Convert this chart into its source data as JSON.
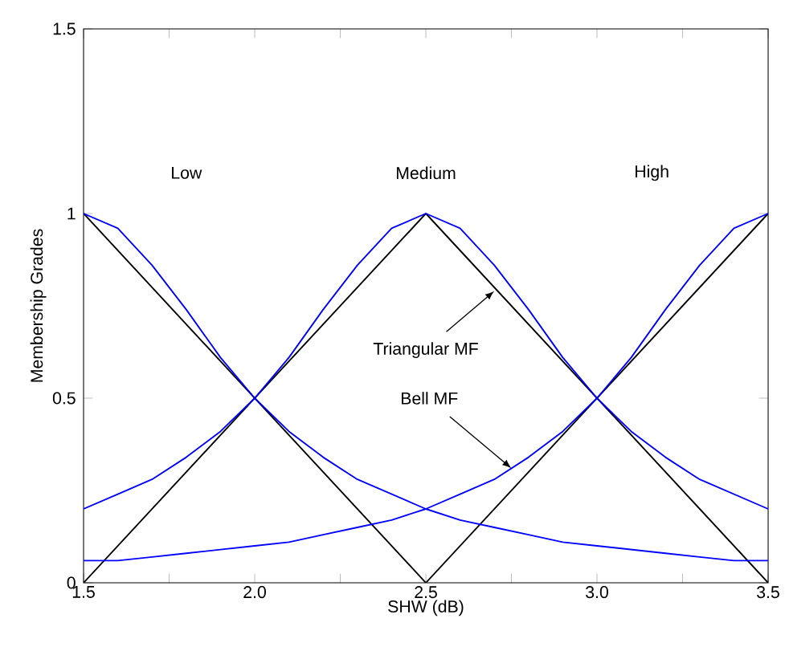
{
  "chart_data": {
    "type": "line",
    "xlabel": "SHW (dB)",
    "ylabel": "Membership Grades",
    "xlim": [
      1.5,
      3.5
    ],
    "ylim": [
      0,
      1.5
    ],
    "xticks": [
      {
        "value": 1.5,
        "label": "1.5"
      },
      {
        "value": 1.75,
        "label": null
      },
      {
        "value": 2.0,
        "label": "2.0"
      },
      {
        "value": 2.25,
        "label": null
      },
      {
        "value": 2.5,
        "label": "2.5"
      },
      {
        "value": 2.75,
        "label": null
      },
      {
        "value": 3.0,
        "label": "3.0"
      },
      {
        "value": 3.25,
        "label": null
      },
      {
        "value": 3.5,
        "label": "3.5"
      }
    ],
    "yticks": [
      0,
      0.5,
      1,
      1.5
    ],
    "grid": false,
    "marker": "none",
    "line_style": "solid",
    "series": [
      {
        "color": "#000000",
        "x": [
          1.5,
          2.5
        ],
        "values": [
          1,
          0
        ]
      },
      {
        "color": "#000000",
        "x": [
          1.5,
          2.5,
          3.5
        ],
        "values": [
          0,
          1,
          0
        ]
      },
      {
        "color": "#000000",
        "x": [
          2.5,
          3.5
        ],
        "values": [
          0,
          1
        ]
      },
      {
        "color": "#0000ff",
        "x": [
          1.5,
          1.6,
          1.7,
          1.8,
          1.9,
          2.0,
          2.1,
          2.2,
          2.3,
          2.4,
          2.5,
          2.6,
          2.7,
          2.8,
          2.9,
          3.0,
          3.1,
          3.2,
          3.3,
          3.4,
          3.5
        ],
        "values": [
          1,
          0.96,
          0.86,
          0.74,
          0.61,
          0.5,
          0.41,
          0.34,
          0.28,
          0.24,
          0.2,
          0.17,
          0.15,
          0.13,
          0.11,
          0.1,
          0.09,
          0.08,
          0.07,
          0.06,
          0.06
        ]
      },
      {
        "color": "#0000ff",
        "x": [
          1.5,
          1.6,
          1.7,
          1.8,
          1.9,
          2.0,
          2.1,
          2.2,
          2.3,
          2.4,
          2.5,
          2.6,
          2.7,
          2.8,
          2.9,
          3.0,
          3.1,
          3.2,
          3.3,
          3.4,
          3.5
        ],
        "values": [
          0.2,
          0.24,
          0.28,
          0.34,
          0.41,
          0.5,
          0.61,
          0.74,
          0.86,
          0.96,
          1,
          0.96,
          0.86,
          0.74,
          0.61,
          0.5,
          0.41,
          0.34,
          0.28,
          0.24,
          0.2
        ]
      },
      {
        "color": "#0000ff",
        "x": [
          1.5,
          1.6,
          1.7,
          1.8,
          1.9,
          2.0,
          2.1,
          2.2,
          2.3,
          2.4,
          2.5,
          2.6,
          2.7,
          2.8,
          2.9,
          3.0,
          3.1,
          3.2,
          3.3,
          3.4,
          3.5
        ],
        "values": [
          0.06,
          0.06,
          0.07,
          0.08,
          0.09,
          0.1,
          0.11,
          0.13,
          0.15,
          0.17,
          0.2,
          0.24,
          0.28,
          0.34,
          0.41,
          0.5,
          0.61,
          0.74,
          0.86,
          0.96,
          1
        ]
      }
    ],
    "annotations": [
      "Low",
      "Medium",
      "High",
      {
        "text": "Triangular MF",
        "x": 2.7,
        "y": 0.79
      },
      {
        "text": "Bell MF",
        "x": 2.75,
        "y": 0.31
      }
    ]
  }
}
